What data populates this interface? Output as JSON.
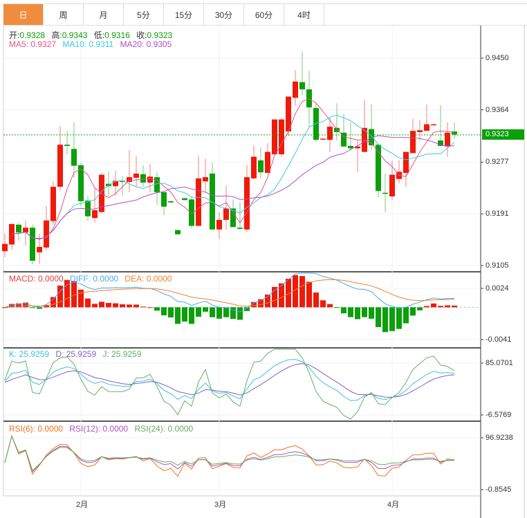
{
  "tabs": [
    "日",
    "周",
    "月",
    "5分",
    "15分",
    "30分",
    "60分",
    "4时"
  ],
  "active_tab": 0,
  "ohlc_legend": {
    "open_label": "开:",
    "open": "0.9328",
    "high_label": "高:",
    "high": "0.9343",
    "low_label": "低:",
    "low": "0.9316",
    "close_label": "收:",
    "close": "0.9323"
  },
  "ma_legend": {
    "ma5": "MA5: 0.9327",
    "ma10": "MA10: 0.9311",
    "ma20": "MA20: 0.9305"
  },
  "macd_legend": {
    "macd": "MACD: 0.0000",
    "diff": "DIFF: 0.0000",
    "dea": "DEA: 0.0000"
  },
  "kdj_legend": {
    "k": "K: 25.9259",
    "d": "D: 25.9259",
    "j": "J: 25.9259"
  },
  "rsi_legend": {
    "rsi6": "RSI(6): 0.0000",
    "rsi12": "RSI(12): 0.0000",
    "rsi24": "RSI(24): 0.0000"
  },
  "current_price": "0.9323",
  "colors": {
    "up": "#f01a0a",
    "down": "#0aa00a",
    "ma5": "#e8508a",
    "ma10": "#3ec7e0",
    "ma20": "#b04ec8",
    "diff": "#4aa8f0",
    "dea": "#f08030",
    "k": "#40c0d8",
    "d": "#8060c8",
    "j": "#60b060",
    "rsi6": "#f07020",
    "rsi12": "#b050c0",
    "rsi24": "#60b060",
    "accent": "#f08c3e"
  },
  "chart_data": {
    "type": "candlestick",
    "price_axis": {
      "ticks": [
        "0.9450",
        "0.9364",
        "0.9277",
        "0.9191",
        "0.9105"
      ],
      "range": [
        0.9105,
        0.945
      ]
    },
    "macd_axis": {
      "ticks": [
        "0.0024",
        "-0.0041"
      ],
      "range": [
        -0.0041,
        0.0024
      ]
    },
    "kdj_axis": {
      "ticks": [
        "85.0701",
        "-6.5769"
      ],
      "range": [
        -6.5769,
        85.0701
      ]
    },
    "rsi_axis": {
      "ticks": [
        "96.9238",
        "-0.8545"
      ],
      "range": [
        -0.8545,
        96.9238
      ]
    },
    "x_labels": [
      {
        "label": "2月",
        "index": 11
      },
      {
        "label": "3月",
        "index": 31
      },
      {
        "label": "4月",
        "index": 56
      }
    ],
    "ohlc": [
      [
        0.9129,
        0.9158,
        0.9119,
        0.9141
      ],
      [
        0.914,
        0.9176,
        0.9131,
        0.9174
      ],
      [
        0.9173,
        0.9176,
        0.9146,
        0.916
      ],
      [
        0.916,
        0.918,
        0.9138,
        0.9168
      ],
      [
        0.9168,
        0.9173,
        0.9107,
        0.9113
      ],
      [
        0.9127,
        0.9158,
        0.9108,
        0.9136
      ],
      [
        0.9135,
        0.9204,
        0.913,
        0.918
      ],
      [
        0.9179,
        0.9245,
        0.9173,
        0.9236
      ],
      [
        0.9236,
        0.9337,
        0.923,
        0.9306
      ],
      [
        0.9306,
        0.9329,
        0.929,
        0.9304
      ],
      [
        0.9299,
        0.9343,
        0.9251,
        0.9271
      ],
      [
        0.9272,
        0.9276,
        0.9204,
        0.9212
      ],
      [
        0.9213,
        0.9221,
        0.9179,
        0.9187
      ],
      [
        0.9184,
        0.9234,
        0.9176,
        0.9197
      ],
      [
        0.9194,
        0.9259,
        0.9192,
        0.9256
      ],
      [
        0.9241,
        0.9261,
        0.9221,
        0.9237
      ],
      [
        0.9237,
        0.9263,
        0.9221,
        0.9246
      ],
      [
        0.9246,
        0.9254,
        0.9221,
        0.9244
      ],
      [
        0.9244,
        0.9297,
        0.9227,
        0.9252
      ],
      [
        0.9251,
        0.9287,
        0.9236,
        0.9258
      ],
      [
        0.9257,
        0.9272,
        0.9236,
        0.9243
      ],
      [
        0.9243,
        0.9274,
        0.9227,
        0.9253
      ],
      [
        0.9252,
        0.926,
        0.9206,
        0.9227
      ],
      [
        0.9227,
        0.9228,
        0.9189,
        0.9203
      ],
      [
        0.9212,
        0.9213,
        0.9209,
        0.921
      ],
      [
        0.9164,
        0.9165,
        0.9156,
        0.9157
      ],
      [
        0.9217,
        0.9218,
        0.9213,
        0.9214
      ],
      [
        0.9215,
        0.9219,
        0.9167,
        0.9171
      ],
      [
        0.9171,
        0.9288,
        0.9171,
        0.925
      ],
      [
        0.9245,
        0.9283,
        0.9228,
        0.9252
      ],
      [
        0.9258,
        0.9276,
        0.9165,
        0.9165
      ],
      [
        0.9165,
        0.9194,
        0.9149,
        0.9181
      ],
      [
        0.9181,
        0.9238,
        0.9165,
        0.92
      ],
      [
        0.92,
        0.9215,
        0.9169,
        0.9169
      ],
      [
        0.9168,
        0.921,
        0.9164,
        0.9166
      ],
      [
        0.9165,
        0.9272,
        0.9161,
        0.9252
      ],
      [
        0.925,
        0.9305,
        0.9248,
        0.9286
      ],
      [
        0.928,
        0.9302,
        0.925,
        0.926
      ],
      [
        0.9259,
        0.9309,
        0.9259,
        0.9294
      ],
      [
        0.929,
        0.9348,
        0.929,
        0.9348
      ],
      [
        0.929,
        0.935,
        0.9286,
        0.9348
      ],
      [
        0.9328,
        0.9386,
        0.932,
        0.9386
      ],
      [
        0.9384,
        0.943,
        0.9371,
        0.9411
      ],
      [
        0.941,
        0.946,
        0.9389,
        0.9398
      ],
      [
        0.9398,
        0.9429,
        0.9336,
        0.9368
      ],
      [
        0.9367,
        0.9374,
        0.9311,
        0.9314
      ],
      [
        0.9315,
        0.9317,
        0.9314,
        0.9316
      ],
      [
        0.9314,
        0.9351,
        0.9294,
        0.9336
      ],
      [
        0.9334,
        0.9375,
        0.9313,
        0.9327
      ],
      [
        0.9326,
        0.9357,
        0.9302,
        0.9303
      ],
      [
        0.9304,
        0.9343,
        0.9296,
        0.93
      ],
      [
        0.93,
        0.9313,
        0.926,
        0.9303
      ],
      [
        0.9294,
        0.9381,
        0.9294,
        0.9334
      ],
      [
        0.9332,
        0.9373,
        0.9297,
        0.9305
      ],
      [
        0.9306,
        0.9306,
        0.9219,
        0.9229
      ],
      [
        0.9226,
        0.9258,
        0.9194,
        0.9225
      ],
      [
        0.922,
        0.9279,
        0.9214,
        0.9256
      ],
      [
        0.9249,
        0.928,
        0.9242,
        0.9261
      ],
      [
        0.9259,
        0.9294,
        0.9236,
        0.9294
      ],
      [
        0.9292,
        0.9349,
        0.9292,
        0.9329
      ],
      [
        0.9327,
        0.9347,
        0.9313,
        0.933
      ],
      [
        0.9329,
        0.9373,
        0.9329,
        0.934
      ],
      [
        0.9339,
        0.9341,
        0.9338,
        0.934
      ],
      [
        0.9313,
        0.9372,
        0.9303,
        0.9304
      ],
      [
        0.9303,
        0.9343,
        0.9286,
        0.9326
      ],
      [
        0.9328,
        0.9343,
        0.9316,
        0.9323
      ]
    ]
  }
}
